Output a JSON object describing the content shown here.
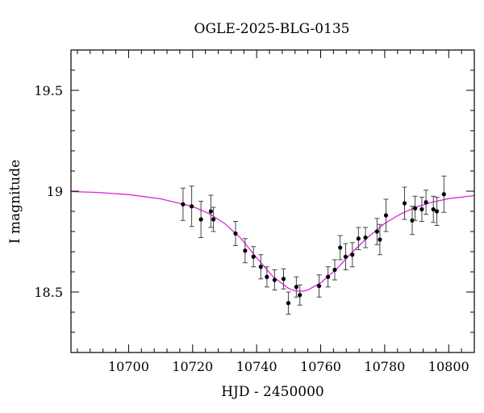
{
  "chart_data": {
    "type": "scatter",
    "title": "OGLE-2025-BLG-0135",
    "xlabel": "HJD - 2450000",
    "ylabel": "I magnitude",
    "xlim": [
      10682,
      10808
    ],
    "ylim": [
      19.7,
      18.2
    ],
    "y_inverted": true,
    "grid": false,
    "x_ticks": [
      10700,
      10720,
      10740,
      10760,
      10780,
      10800
    ],
    "x_tick_labels": [
      "10700",
      "10720",
      "10740",
      "10760",
      "10780",
      "10800"
    ],
    "y_ticks": [
      18.5,
      19,
      19.5
    ],
    "y_tick_labels": [
      "18.5",
      "19",
      "19.5"
    ],
    "colors": {
      "model": "#e020e0",
      "points": "#000000",
      "errorbars": "#444444"
    },
    "series": [
      {
        "type": "scatter_with_errorbars",
        "x": [
          10717,
          10719.7,
          10722.6,
          10725.7,
          10726.5,
          10733.4,
          10736.4,
          10739,
          10741.3,
          10743.2,
          10745.6,
          10748.4,
          10749.9,
          10752.4,
          10753.5,
          10759.5,
          10762.3,
          10764.4,
          10766.1,
          10767.8,
          10769.9,
          10771.8,
          10774,
          10777.6,
          10778.5,
          10780.4,
          10786.2,
          10788.6,
          10789.5,
          10791.6,
          10792.9,
          10795.2,
          10796.3,
          10798.5
        ],
        "y": [
          18.935,
          18.925,
          18.86,
          18.9,
          18.86,
          18.79,
          18.705,
          18.675,
          18.625,
          18.575,
          18.56,
          18.565,
          18.445,
          18.525,
          18.485,
          18.53,
          18.575,
          18.61,
          18.72,
          18.675,
          18.685,
          18.765,
          18.77,
          18.8,
          18.76,
          18.88,
          18.94,
          18.855,
          18.915,
          18.91,
          18.945,
          18.91,
          18.9,
          18.985
        ],
        "yerr": [
          0.08,
          0.1,
          0.09,
          0.08,
          0.06,
          0.06,
          0.06,
          0.05,
          0.06,
          0.05,
          0.05,
          0.05,
          0.055,
          0.05,
          0.05,
          0.055,
          0.05,
          0.05,
          0.06,
          0.065,
          0.06,
          0.055,
          0.05,
          0.065,
          0.075,
          0.08,
          0.08,
          0.07,
          0.06,
          0.06,
          0.06,
          0.065,
          0.07,
          0.09
        ]
      },
      {
        "type": "line",
        "x": [
          10682,
          10690,
          10700,
          10710,
          10720,
          10725,
          10730,
          10735,
          10740,
          10745,
          10750,
          10752,
          10754,
          10756,
          10760,
          10765,
          10770,
          10775,
          10780,
          10785,
          10790,
          10795,
          10800,
          10808
        ],
        "y": [
          18.998,
          18.994,
          18.983,
          18.962,
          18.924,
          18.89,
          18.84,
          18.767,
          18.67,
          18.578,
          18.517,
          18.506,
          18.503,
          18.51,
          18.545,
          18.615,
          18.7,
          18.775,
          18.84,
          18.887,
          18.922,
          18.946,
          18.963,
          18.978
        ]
      }
    ]
  }
}
